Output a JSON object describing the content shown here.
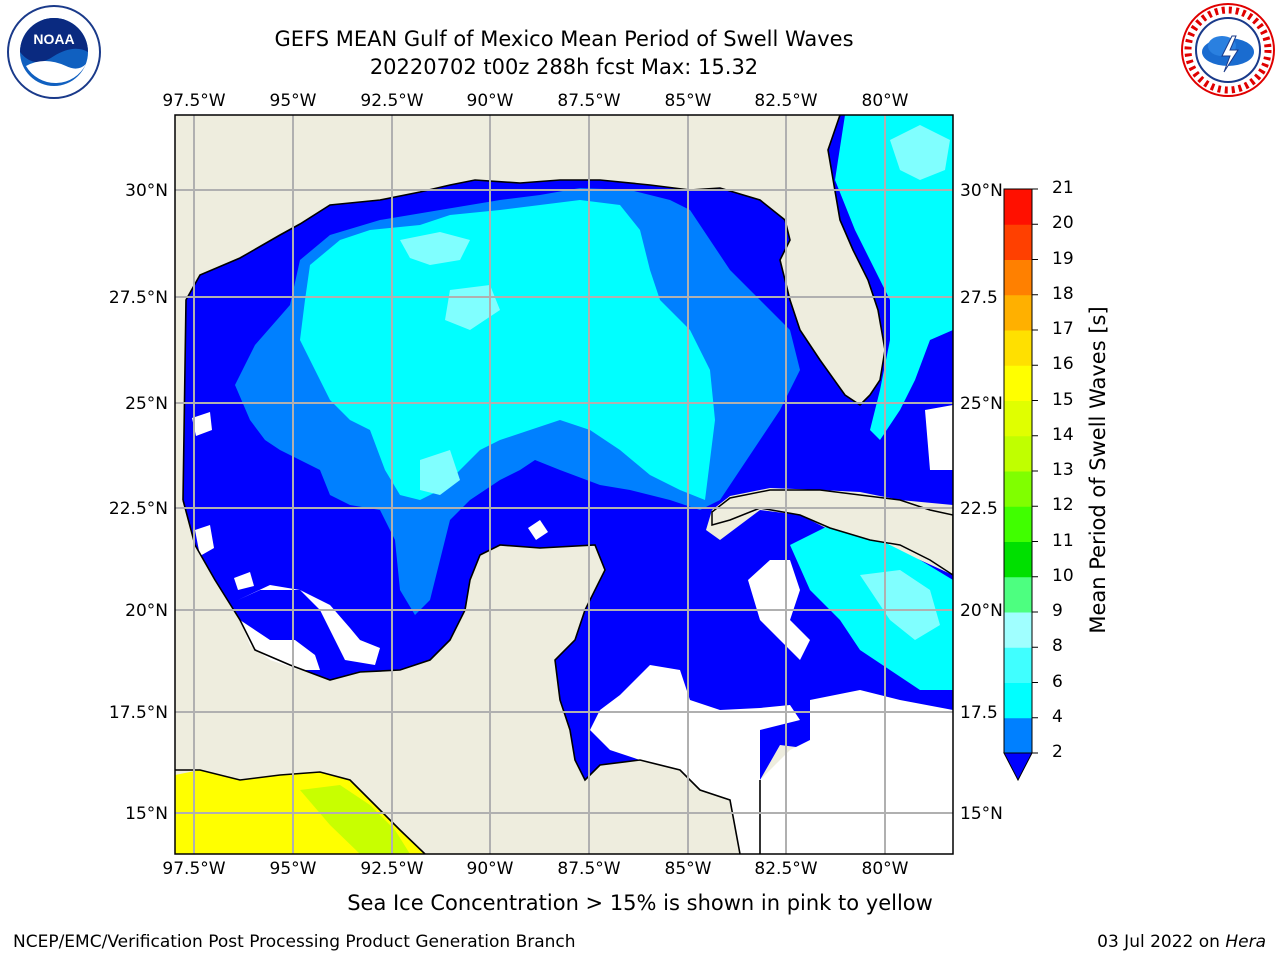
{
  "title": {
    "line1": "GEFS MEAN Gulf of Mexico Mean Period of Swell Waves",
    "line2": "20220702 t00z 288h fcst   Max: 15.32"
  },
  "logos": {
    "left": "noaa-logo",
    "right": "nws-logo",
    "nws_ring_text": "NATIONAL WEATHER SERVICE"
  },
  "map": {
    "lon_labels": [
      "97.5°W",
      "95°W",
      "92.5°W",
      "90°W",
      "87.5°W",
      "85°W",
      "82.5°W",
      "80°W"
    ],
    "lat_labels_left": [
      "30°N",
      "27.5°N",
      "25°N",
      "22.5°N",
      "20°N",
      "17.5°N",
      "15°N"
    ],
    "lat_labels_right": [
      "30°N",
      "27.5",
      "25°N",
      "22.5",
      "20°N",
      "17.5",
      "15°N"
    ],
    "colors": {
      "land": "#eeedde",
      "no_data": "#ffffff",
      "period_2_4": "#0000ff",
      "period_4_6": "#0080ff",
      "period_6_8": "#00ffff",
      "period_8_9": "#80ffff",
      "period_12_16": "#ffff00"
    }
  },
  "colorbar": {
    "title": "Mean Period of Swell Waves [s]",
    "ticks": [
      "2",
      "4",
      "6",
      "8",
      "9",
      "10",
      "11",
      "12",
      "13",
      "14",
      "15",
      "16",
      "17",
      "18",
      "19",
      "20",
      "21"
    ],
    "colors": [
      "#0080ff",
      "#00ffff",
      "#40ffff",
      "#a0ffff",
      "#4dff80",
      "#00e000",
      "#40ff00",
      "#80ff00",
      "#c0ff00",
      "#e0ff00",
      "#ffff00",
      "#ffe000",
      "#ffb000",
      "#ff8000",
      "#ff4000",
      "#ff1000"
    ],
    "extend_color": "#0000ff"
  },
  "note": "Sea Ice Concentration > 15% is shown in pink to yellow",
  "footer": {
    "left": "NCEP/EMC/Verification Post Processing Product Generation Branch",
    "right_date": "03 Jul 2022 on ",
    "right_host": "Hera"
  }
}
